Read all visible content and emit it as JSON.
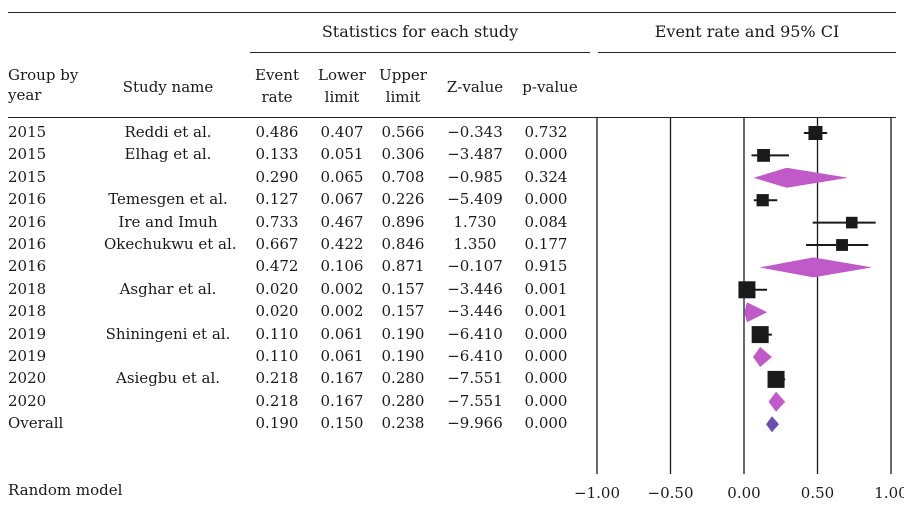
{
  "header": {
    "group_stats": "Statistics for each study",
    "group_plot": "Event rate and 95% CI",
    "col_year": [
      "Group by",
      "year"
    ],
    "col_study": "Study name",
    "col_rate": [
      "Event",
      "rate"
    ],
    "col_lower": [
      "Lower",
      "limit"
    ],
    "col_upper": [
      "Upper",
      "limit"
    ],
    "col_z": "Z-value",
    "col_p": "p-value"
  },
  "footer": {
    "model": "Random model"
  },
  "chart_data": {
    "type": "table",
    "plot_type": "forest",
    "xlim": [
      -1.0,
      1.0
    ],
    "x_ticks": [
      "−1.00",
      "−0.50",
      "0.00",
      "0.50",
      "1.00"
    ],
    "x_tick_values": [
      -1.0,
      -0.5,
      0.0,
      0.5,
      1.0
    ],
    "colors": {
      "study": "#1a1a1a",
      "subgroup": "#c05ac8",
      "overall": "#6a4fb0"
    },
    "rows": [
      {
        "year": "2015",
        "study": "Reddi et al.",
        "rate": "0.486",
        "lower": "0.407",
        "upper": "0.566",
        "z": "−0.343",
        "p": "0.732",
        "kind": "study",
        "est": 0.486,
        "lo": 0.407,
        "hi": 0.566,
        "weight": 0.5
      },
      {
        "year": "2015",
        "study": "Elhag et al.",
        "rate": "0.133",
        "lower": "0.051",
        "upper": "0.306",
        "z": "−3.487",
        "p": "0.000",
        "kind": "study",
        "est": 0.133,
        "lo": 0.051,
        "hi": 0.306,
        "weight": 0.4
      },
      {
        "year": "2015",
        "study": "",
        "rate": "0.290",
        "lower": "0.065",
        "upper": "0.708",
        "z": "−0.985",
        "p": "0.324",
        "kind": "subgroup",
        "est": 0.29,
        "lo": 0.065,
        "hi": 0.708
      },
      {
        "year": "2016",
        "study": "Temesgen et al.",
        "rate": "0.127",
        "lower": "0.067",
        "upper": "0.226",
        "z": "−5.409",
        "p": "0.000",
        "kind": "study",
        "est": 0.127,
        "lo": 0.067,
        "hi": 0.226,
        "weight": 0.35
      },
      {
        "year": "2016",
        "study": "Ire and Imuh",
        "rate": "0.733",
        "lower": "0.467",
        "upper": "0.896",
        "z": "1.730",
        "p": "0.084",
        "kind": "study",
        "est": 0.733,
        "lo": 0.467,
        "hi": 0.896,
        "weight": 0.3
      },
      {
        "year": "2016",
        "study": "Okechukwu et al.",
        "rate": "0.667",
        "lower": "0.422",
        "upper": "0.846",
        "z": "1.350",
        "p": "0.177",
        "kind": "study",
        "est": 0.667,
        "lo": 0.422,
        "hi": 0.846,
        "weight": 0.32
      },
      {
        "year": "2016",
        "study": "",
        "rate": "0.472",
        "lower": "0.106",
        "upper": "0.871",
        "z": "−0.107",
        "p": "0.915",
        "kind": "subgroup",
        "est": 0.472,
        "lo": 0.106,
        "hi": 0.871
      },
      {
        "year": "2018",
        "study": "Asghar et al.",
        "rate": "0.020",
        "lower": "0.002",
        "upper": "0.157",
        "z": "−3.446",
        "p": "0.001",
        "kind": "study",
        "est": 0.02,
        "lo": 0.002,
        "hi": 0.157,
        "weight": 0.75
      },
      {
        "year": "2018",
        "study": "",
        "rate": "0.020",
        "lower": "0.002",
        "upper": "0.157",
        "z": "−3.446",
        "p": "0.001",
        "kind": "subgroup",
        "est": 0.02,
        "lo": 0.002,
        "hi": 0.157
      },
      {
        "year": "2019",
        "study": "Shiningeni et al.",
        "rate": "0.110",
        "lower": "0.061",
        "upper": "0.190",
        "z": "−6.410",
        "p": "0.000",
        "kind": "study",
        "est": 0.11,
        "lo": 0.061,
        "hi": 0.19,
        "weight": 0.75
      },
      {
        "year": "2019",
        "study": "",
        "rate": "0.110",
        "lower": "0.061",
        "upper": "0.190",
        "z": "−6.410",
        "p": "0.000",
        "kind": "subgroup",
        "est": 0.11,
        "lo": 0.061,
        "hi": 0.19
      },
      {
        "year": "2020",
        "study": "Asiegbu et al.",
        "rate": "0.218",
        "lower": "0.167",
        "upper": "0.280",
        "z": "−7.551",
        "p": "0.000",
        "kind": "study",
        "est": 0.218,
        "lo": 0.167,
        "hi": 0.28,
        "weight": 0.75
      },
      {
        "year": "2020",
        "study": "",
        "rate": "0.218",
        "lower": "0.167",
        "upper": "0.280",
        "z": "−7.551",
        "p": "0.000",
        "kind": "subgroup",
        "est": 0.218,
        "lo": 0.167,
        "hi": 0.28
      },
      {
        "year": "Overall",
        "study": "",
        "rate": "0.190",
        "lower": "0.150",
        "upper": "0.238",
        "z": "−9.966",
        "p": "0.000",
        "kind": "overall",
        "est": 0.19,
        "lo": 0.15,
        "hi": 0.238
      }
    ]
  }
}
